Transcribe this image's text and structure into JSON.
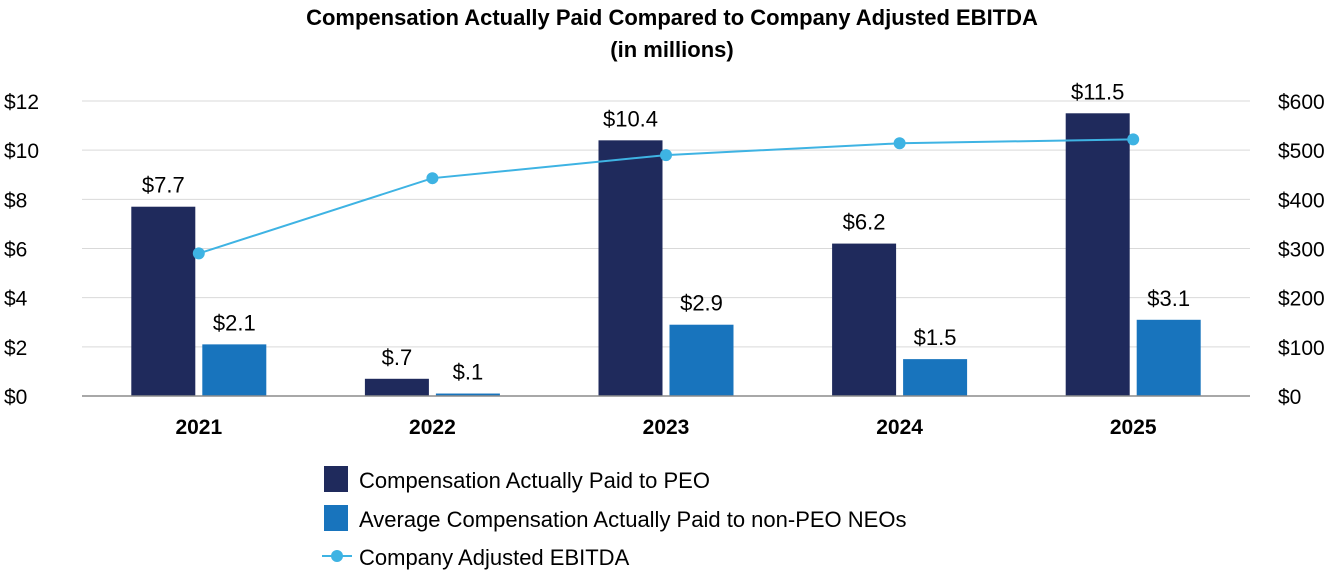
{
  "chart_data": {
    "type": "bar",
    "title": "Compensation Actually Paid Compared to Company Adjusted EBITDA",
    "subtitle": "(in millions)",
    "categories": [
      "2021",
      "2022",
      "2023",
      "2024",
      "2025"
    ],
    "series": [
      {
        "name": "Compensation Actually Paid to PEO",
        "type": "bar",
        "axis": "left",
        "color": "#1f2a5c",
        "values": [
          7.7,
          0.7,
          10.4,
          6.2,
          11.5
        ],
        "labels": [
          "$7.7",
          "$.7",
          "$10.4",
          "$6.2",
          "$11.5"
        ]
      },
      {
        "name": "Average Compensation Actually Paid to non-PEO NEOs",
        "type": "bar",
        "axis": "left",
        "color": "#1874bd",
        "values": [
          2.1,
          0.1,
          2.9,
          1.5,
          3.1
        ],
        "labels": [
          "$2.1",
          "$.1",
          "$2.9",
          "$1.5",
          "$3.1"
        ]
      },
      {
        "name": "Company Adjusted EBITDA",
        "type": "line",
        "axis": "right",
        "color": "#3eb3e3",
        "values": [
          290,
          443,
          490,
          514,
          522
        ]
      }
    ],
    "y_left": {
      "min": 0,
      "max": 12,
      "ticks": [
        0,
        2,
        4,
        6,
        8,
        10,
        12
      ],
      "tick_labels": [
        "$0",
        "$2",
        "$4",
        "$6",
        "$8",
        "$10",
        "$12"
      ]
    },
    "y_right": {
      "min": 0,
      "max": 600,
      "ticks": [
        0,
        100,
        200,
        300,
        400,
        500,
        600
      ],
      "tick_labels": [
        "$0",
        "$100",
        "$200",
        "$300",
        "$400",
        "$500",
        "$600"
      ]
    },
    "grid": true,
    "legend_position": "bottom"
  }
}
